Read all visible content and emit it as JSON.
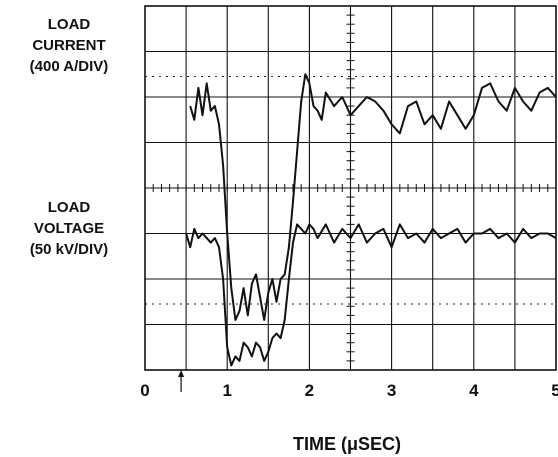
{
  "labels": {
    "current_line1": "LOAD",
    "current_line2": "CURRENT",
    "current_line3": "(400 A/DIV)",
    "voltage_line1": "LOAD",
    "voltage_line2": "VOLTAGE",
    "voltage_line3": "(50 kV/DIV)",
    "x_axis_title": "TIME (μSEC)"
  },
  "chart_data": {
    "type": "line",
    "title": "",
    "xlabel": "TIME (μSEC)",
    "ylabel": "",
    "xlim": [
      0,
      5
    ],
    "x_ticks": [
      "0",
      "1",
      "2",
      "3",
      "4",
      "5"
    ],
    "grid": true,
    "divisions": {
      "horizontal": 10,
      "vertical": 8
    },
    "series": [
      {
        "name": "LOAD CURRENT (400 A/DIV)",
        "unit_per_division": "400 A/DIV",
        "baseline_division": 2.0,
        "x": [
          0.55,
          0.6,
          0.65,
          0.7,
          0.75,
          0.8,
          0.85,
          0.9,
          0.95,
          1.0,
          1.05,
          1.1,
          1.15,
          1.2,
          1.25,
          1.3,
          1.35,
          1.4,
          1.45,
          1.5,
          1.55,
          1.6,
          1.65,
          1.7,
          1.75,
          1.8,
          1.85,
          1.9,
          1.95,
          2.0,
          2.05,
          2.1,
          2.15,
          2.2,
          2.3,
          2.4,
          2.5,
          2.6,
          2.7,
          2.8,
          2.9,
          3.0,
          3.1,
          3.2,
          3.3,
          3.4,
          3.5,
          3.6,
          3.7,
          3.8,
          3.9,
          4.0,
          4.1,
          4.2,
          4.3,
          4.4,
          4.5,
          4.6,
          4.7,
          4.8,
          4.9,
          5.0
        ],
        "y": [
          1.8,
          1.5,
          2.2,
          1.6,
          2.3,
          1.7,
          1.8,
          1.4,
          0.5,
          -1.0,
          -2.2,
          -2.9,
          -2.7,
          -2.2,
          -2.8,
          -2.1,
          -1.9,
          -2.4,
          -2.9,
          -2.3,
          -2.0,
          -2.5,
          -2.0,
          -1.9,
          -1.3,
          -0.3,
          0.8,
          1.9,
          2.5,
          2.3,
          1.8,
          1.7,
          1.5,
          2.1,
          1.8,
          2.0,
          1.6,
          1.8,
          2.0,
          1.9,
          1.7,
          1.4,
          1.2,
          1.8,
          1.9,
          1.4,
          1.6,
          1.3,
          1.9,
          1.6,
          1.3,
          1.6,
          2.2,
          2.3,
          1.9,
          1.7,
          2.2,
          1.9,
          1.7,
          2.1,
          2.2,
          2.0
        ]
      },
      {
        "name": "LOAD VOLTAGE (50 kV/DIV)",
        "unit_per_division": "50 kV/DIV",
        "baseline_division": -1.0,
        "x": [
          0.5,
          0.55,
          0.6,
          0.65,
          0.7,
          0.75,
          0.8,
          0.85,
          0.9,
          0.95,
          1.0,
          1.05,
          1.1,
          1.15,
          1.2,
          1.25,
          1.3,
          1.35,
          1.4,
          1.45,
          1.5,
          1.55,
          1.6,
          1.65,
          1.7,
          1.75,
          1.8,
          1.85,
          1.9,
          1.95,
          2.0,
          2.05,
          2.1,
          2.2,
          2.3,
          2.4,
          2.5,
          2.6,
          2.7,
          2.8,
          2.9,
          3.0,
          3.1,
          3.2,
          3.3,
          3.4,
          3.5,
          3.6,
          3.7,
          3.8,
          3.9,
          4.0,
          4.1,
          4.2,
          4.3,
          4.4,
          4.5,
          4.6,
          4.7,
          4.8,
          4.9,
          5.0
        ],
        "y": [
          -1.0,
          -1.3,
          -0.9,
          -1.1,
          -1.0,
          -1.1,
          -1.2,
          -1.1,
          -1.3,
          -2.0,
          -3.5,
          -3.9,
          -3.7,
          -3.8,
          -3.4,
          -3.5,
          -3.7,
          -3.4,
          -3.5,
          -3.8,
          -3.6,
          -3.3,
          -3.2,
          -3.3,
          -2.9,
          -2.0,
          -1.2,
          -0.8,
          -0.9,
          -1.0,
          -0.8,
          -0.9,
          -1.1,
          -0.8,
          -1.2,
          -0.9,
          -1.1,
          -0.8,
          -1.2,
          -1.0,
          -0.9,
          -1.3,
          -0.8,
          -1.1,
          -1.0,
          -1.2,
          -0.9,
          -1.1,
          -1.0,
          -0.9,
          -1.2,
          -1.0,
          -1.0,
          -0.9,
          -1.1,
          -1.0,
          -1.2,
          -0.9,
          -1.1,
          -1.0,
          -1.0,
          -1.1
        ]
      }
    ],
    "annotations": [
      {
        "type": "trigger-arrow",
        "x": 0.5
      }
    ]
  }
}
